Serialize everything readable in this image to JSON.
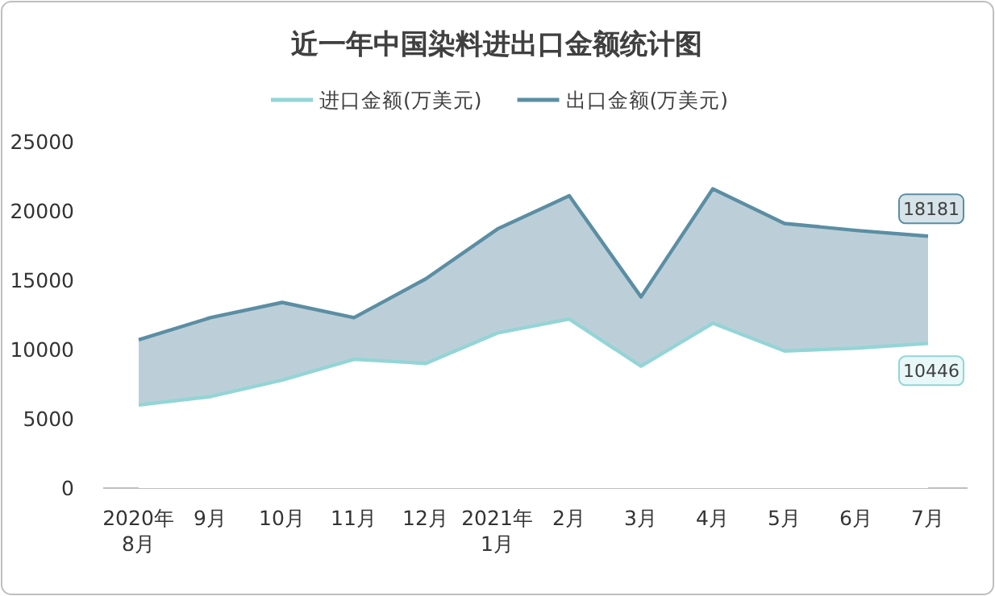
{
  "chart_data": {
    "type": "area",
    "title": "近一年中国染料进出口金额统计图",
    "categories": [
      "2020年8月",
      "9月",
      "10月",
      "11月",
      "12月",
      "2021年1月",
      "2月",
      "3月",
      "4月",
      "5月",
      "6月",
      "7月"
    ],
    "series": [
      {
        "name": "进口金额(万美元)",
        "color": "#93d5d6",
        "values": [
          6000,
          6600,
          7800,
          9300,
          9000,
          11200,
          12200,
          8800,
          11900,
          9900,
          10100,
          10446
        ],
        "value_labels": [
          null,
          null,
          null,
          null,
          null,
          null,
          null,
          null,
          null,
          null,
          null,
          "10446"
        ]
      },
      {
        "name": "出口金额(万美元)",
        "color": "#5b8ea3",
        "values": [
          10700,
          12300,
          13400,
          12300,
          15100,
          18700,
          21100,
          13800,
          21600,
          19100,
          18600,
          18181
        ],
        "value_labels": [
          null,
          null,
          null,
          null,
          null,
          null,
          null,
          null,
          null,
          null,
          null,
          "18181"
        ]
      }
    ],
    "ylim": [
      0,
      25000
    ],
    "yticks": [
      0,
      5000,
      10000,
      15000,
      20000,
      25000
    ],
    "grid": false,
    "legend": "top"
  }
}
